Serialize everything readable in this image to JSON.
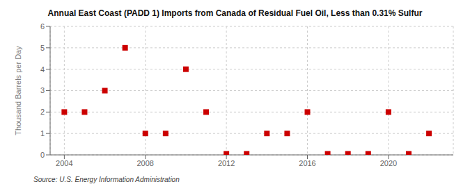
{
  "chart_data": {
    "type": "scatter",
    "title": "Annual East Coast (PADD 1) Imports from Canada of Residual Fuel Oil, Less than 0.31% Sulfur",
    "ylabel": "Thousand Barrels per Day",
    "source": "Source: U.S. Energy Information Administration",
    "x": [
      2004,
      2005,
      2006,
      2007,
      2008,
      2009,
      2010,
      2011,
      2012,
      2013,
      2014,
      2015,
      2016,
      2017,
      2018,
      2019,
      2020,
      2021,
      2022
    ],
    "values": [
      2,
      2,
      3,
      5,
      1,
      1,
      4,
      2,
      0.05,
      0.05,
      1,
      1,
      2,
      0.05,
      0.05,
      0.05,
      2,
      0.05,
      1
    ],
    "color": "#cc0000",
    "marker": "square",
    "xlim": [
      2003.3,
      2023.2
    ],
    "ylim": [
      0,
      6
    ],
    "xticks": [
      2004,
      2008,
      2012,
      2016,
      2020
    ],
    "yticks": [
      0,
      1,
      2,
      3,
      4,
      5,
      6
    ],
    "grid": true
  }
}
